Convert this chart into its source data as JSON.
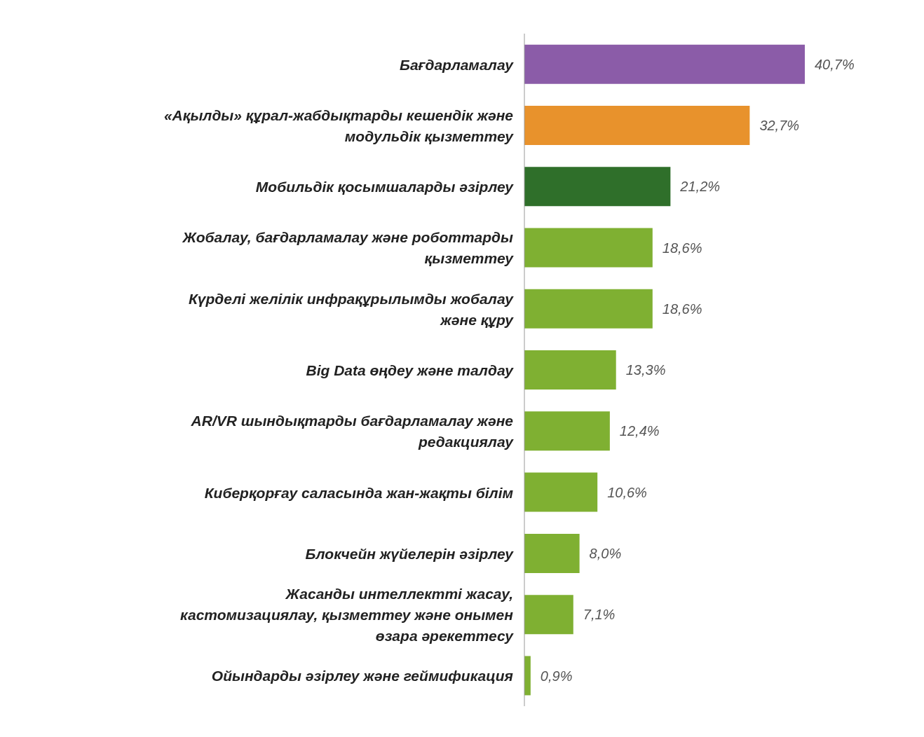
{
  "chart_data": {
    "type": "bar",
    "orientation": "horizontal",
    "categories": [
      "Бағдарламалау",
      "«Ақылды» құрал-жабдықтарды кешендік және модульдік қызметтеу",
      "Мобильдік қосымшаларды әзірлеу",
      "Жобалау, бағдарламалау және роботтарды қызметтеу",
      "Күрделі желілік инфрақұрылымды жобалау және құру",
      "Big Data өңдеу және талдау",
      "AR/VR шындықтарды бағдарламалау және редакциялау",
      "Киберқорғау саласында жан-жақты білім",
      "Блокчейн жүйелерін әзірлеу",
      "Жасанды интеллектті жасау, кастомизациялау, қызметтеу және онымен өзара әрекеттесу",
      "Ойындарды әзірлеу және геймификация"
    ],
    "values": [
      40.7,
      32.7,
      21.2,
      18.6,
      18.6,
      13.3,
      12.4,
      10.6,
      8.0,
      7.1,
      0.9
    ],
    "value_labels": [
      "40,7%",
      "32,7%",
      "21,2%",
      "18,6%",
      "18,6%",
      "13,3%",
      "12,4%",
      "10,6%",
      "8,0%",
      "7,1%",
      "0,9%"
    ],
    "colors": [
      "#8b5ca8",
      "#e8922c",
      "#2f6f2a",
      "#7fb032",
      "#7fb032",
      "#7fb032",
      "#7fb032",
      "#7fb032",
      "#7fb032",
      "#7fb032",
      "#7fb032"
    ]
  }
}
